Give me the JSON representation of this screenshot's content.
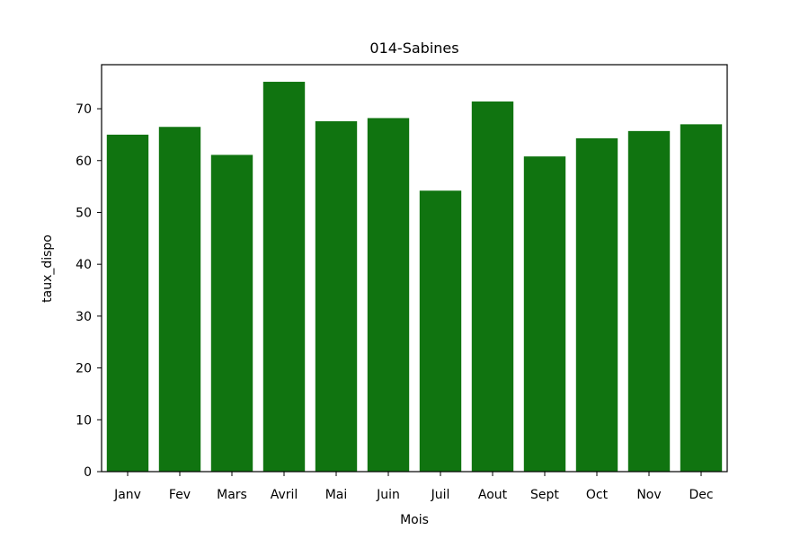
{
  "chart_data": {
    "type": "bar",
    "title": "014-Sabines",
    "xlabel": "Mois",
    "ylabel": "taux_dispo",
    "categories": [
      "Janv",
      "Fev",
      "Mars",
      "Avril",
      "Mai",
      "Juin",
      "Juil",
      "Aout",
      "Sept",
      "Oct",
      "Nov",
      "Dec"
    ],
    "values": [
      65.0,
      66.5,
      61.1,
      75.2,
      67.6,
      68.2,
      54.2,
      71.4,
      60.8,
      64.3,
      65.7,
      67.0
    ],
    "ylim": [
      0,
      78.5
    ],
    "yticks": [
      0,
      10,
      20,
      30,
      40,
      50,
      60,
      70
    ],
    "ytick_labels": [
      "0",
      "10",
      "20",
      "30",
      "40",
      "50",
      "60",
      "70"
    ],
    "bar_color": "#107410",
    "grid": false,
    "legend": "none"
  }
}
